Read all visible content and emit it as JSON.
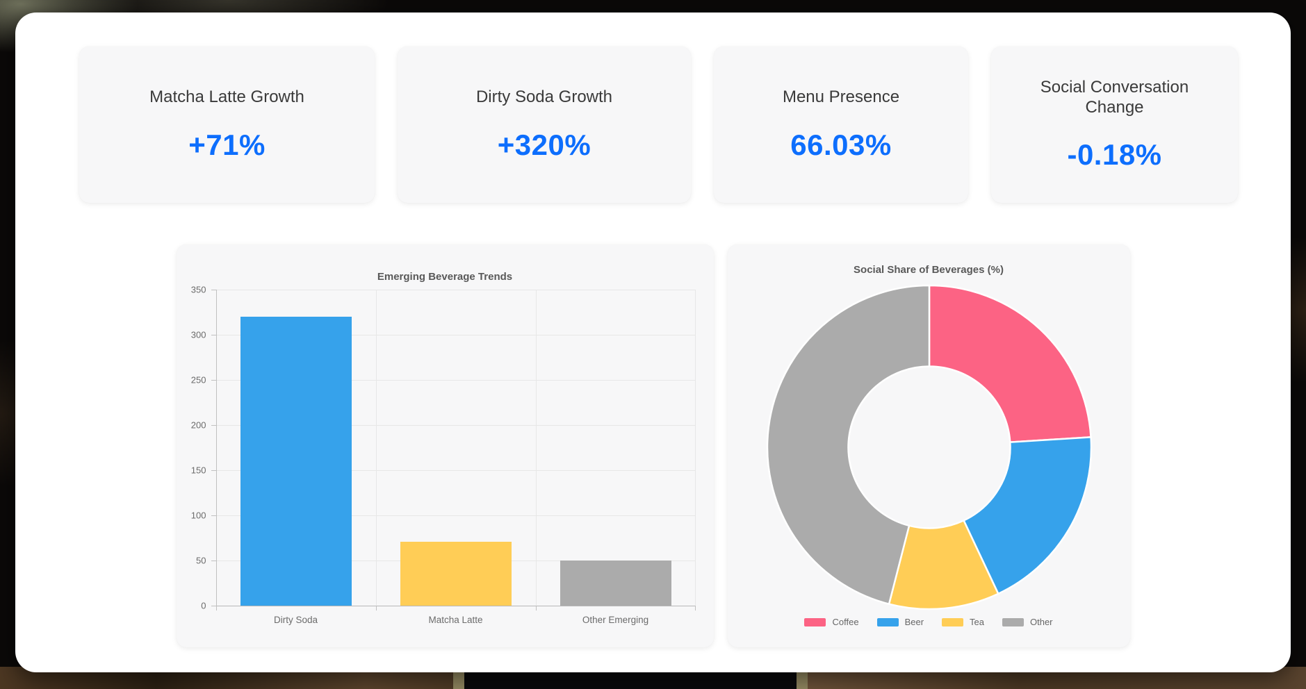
{
  "stats": [
    {
      "label": "Matcha Latte Growth",
      "value": "+71%"
    },
    {
      "label": "Dirty Soda Growth",
      "value": "+320%"
    },
    {
      "label": "Menu Presence",
      "value": "66.03%"
    },
    {
      "label": "Social Conversation Change",
      "value": "-0.18%"
    }
  ],
  "colors": {
    "stat_value_blue": "#0d6efd",
    "panel_background": "#f7f7f8",
    "card_background": "#ffffff",
    "axis_text": "#6b6b6b"
  },
  "chart_data": [
    {
      "type": "bar",
      "title": "Emerging Beverage Trends",
      "categories": [
        "Dirty Soda",
        "Matcha Latte",
        "Other Emerging"
      ],
      "values": [
        320,
        71,
        50
      ],
      "bar_colors": [
        "#36A2EB",
        "#FFCD56",
        "#ABABAB"
      ],
      "xlabel": "",
      "ylabel": "",
      "ylim": [
        0,
        350
      ],
      "yticks": [
        0,
        50,
        100,
        150,
        200,
        250,
        300,
        350
      ],
      "grid": true,
      "legend": "none"
    },
    {
      "type": "pie",
      "title": "Social Share of Beverages (%)",
      "labels": [
        "Coffee",
        "Beer",
        "Tea",
        "Other"
      ],
      "values": [
        24,
        19,
        11,
        46
      ],
      "slice_colors": [
        "#FC6384",
        "#36A2EB",
        "#FFCD56",
        "#ABABAB"
      ],
      "donut_cutout_pct": 50,
      "start_angle_deg": 0,
      "direction": "clockwise",
      "legend_position": "bottom"
    }
  ]
}
